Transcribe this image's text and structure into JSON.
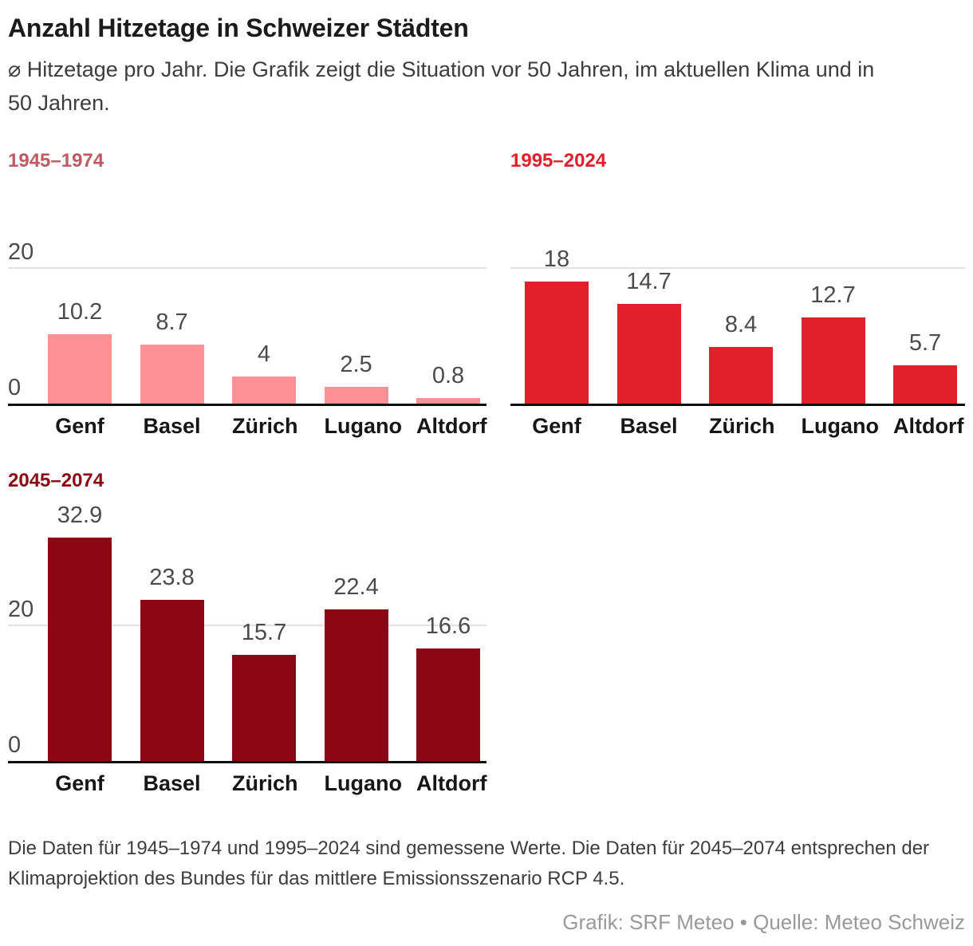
{
  "header": {
    "title": "Anzahl Hitzetage in Schweizer Städten",
    "subtitle": "⌀ Hitzetage pro Jahr. Die Grafik zeigt die Situation vor 50 Jahren, im aktuellen Klima und in 50 Jahren."
  },
  "chart_data": [
    {
      "type": "bar",
      "period": "1945–1974",
      "categories": [
        "Genf",
        "Basel",
        "Zürich",
        "Lugano",
        "Altdorf"
      ],
      "values": [
        10.2,
        8.7,
        4,
        2.5,
        0.8
      ],
      "bar_color": "#fc9095",
      "title_color": "#c05a61",
      "ylim": [
        0,
        24
      ],
      "gridlines": [
        20
      ],
      "ytick_labels": [
        20,
        0
      ],
      "grid": true,
      "legend": false
    },
    {
      "type": "bar",
      "period": "1995–2024",
      "categories": [
        "Genf",
        "Basel",
        "Zürich",
        "Lugano",
        "Altdorf"
      ],
      "values": [
        18,
        14.7,
        8.4,
        12.7,
        5.7
      ],
      "bar_color": "#e2202b",
      "title_color": "#e2202b",
      "ylim": [
        0,
        24
      ],
      "gridlines": [
        20
      ],
      "ytick_labels": [],
      "grid": true,
      "legend": false
    },
    {
      "type": "bar",
      "period": "2045–2074",
      "categories": [
        "Genf",
        "Basel",
        "Zürich",
        "Lugano",
        "Altdorf"
      ],
      "values": [
        32.9,
        23.8,
        15.7,
        22.4,
        16.6
      ],
      "bar_color": "#8d0613",
      "title_color": "#8d0613",
      "ylim": [
        0,
        38
      ],
      "gridlines": [
        20
      ],
      "ytick_labels": [
        20,
        0
      ],
      "grid": true,
      "legend": false
    }
  ],
  "footer": {
    "note": "Die Daten für 1945–1974 und 1995–2024 sind gemessene Werte. Die Daten für 2045–2074 entsprechen der Klimaprojektion des Bundes für das mittlere Emissionsszenario RCP 4.5.",
    "credit": "Grafik: SRF Meteo • Quelle: Meteo Schweiz"
  }
}
